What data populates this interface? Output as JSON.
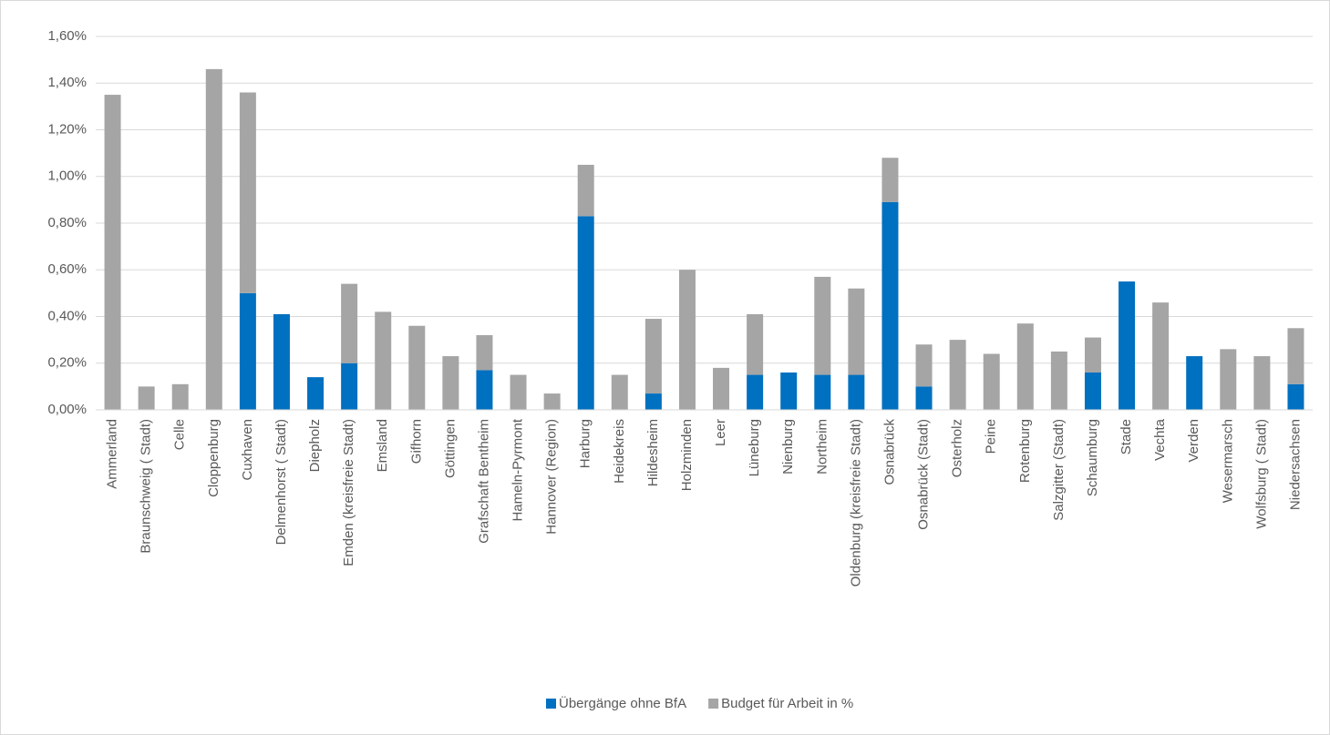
{
  "chart_data": {
    "type": "stacked-bar",
    "categories": [
      "Ammerland",
      "Braunschweig ( Stadt)",
      "Celle",
      "Cloppenburg",
      "Cuxhaven",
      "Delmenhorst ( Stadt)",
      "Diepholz",
      "Emden (kreisfreie Stadt)",
      "Emsland",
      "Gifhorn",
      "Göttingen",
      "Grafschaft Bentheim",
      "Hameln-Pyrmont",
      "Hannover (Region)",
      "Harburg",
      "Heidekreis",
      "Hildesheim",
      "Holzminden",
      "Leer",
      "Lüneburg",
      "Nienburg",
      "Northeim",
      "Oldenburg (kreisfreie Stadt)",
      "Osnabrück",
      "Osnabrück (Stadt)",
      "Osterholz",
      "Peine",
      "Rotenburg",
      "Salzgitter (Stadt)",
      "Schaumburg",
      "Stade",
      "Vechta",
      "Verden",
      "Wesermarsch",
      "Wolfsburg ( Stadt)",
      "Niedersachsen"
    ],
    "series": [
      {
        "name": "Übergänge ohne BfA",
        "color": "#0070c0",
        "values": [
          0,
          0,
          0,
          0,
          0.5,
          0.41,
          0.14,
          0.2,
          0,
          0,
          0,
          0.17,
          0,
          0,
          0.83,
          0,
          0.07,
          0,
          0,
          0.15,
          0.16,
          0.15,
          0.15,
          0.89,
          0.1,
          0,
          0,
          0,
          0,
          0.16,
          0.55,
          0,
          0.23,
          0,
          0,
          0.11
        ]
      },
      {
        "name": "Budget für Arbeit in %",
        "color": "#a5a5a5",
        "values": [
          1.35,
          0.1,
          0.11,
          1.46,
          0.86,
          0,
          0,
          0.34,
          0.42,
          0.36,
          0.23,
          0.15,
          0.15,
          0.07,
          0.22,
          0.15,
          0.32,
          0.6,
          0.18,
          0.26,
          0,
          0.42,
          0.37,
          0.19,
          0.18,
          0.3,
          0.24,
          0.37,
          0.25,
          0.15,
          0,
          0.46,
          0,
          0.26,
          0.23,
          0.24
        ]
      }
    ],
    "ylim": [
      0,
      1.6
    ],
    "yticks": [
      {
        "value": 0,
        "label": "0,00%"
      },
      {
        "value": 0.2,
        "label": "0,20%"
      },
      {
        "value": 0.4,
        "label": "0,40%"
      },
      {
        "value": 0.6,
        "label": "0,60%"
      },
      {
        "value": 0.8,
        "label": "0,80%"
      },
      {
        "value": 1.0,
        "label": "1,00%"
      },
      {
        "value": 1.2,
        "label": "1,20%"
      },
      {
        "value": 1.4,
        "label": "1,40%"
      },
      {
        "value": 1.6,
        "label": "1,60%"
      }
    ],
    "grid": true,
    "legend": "bottom"
  }
}
